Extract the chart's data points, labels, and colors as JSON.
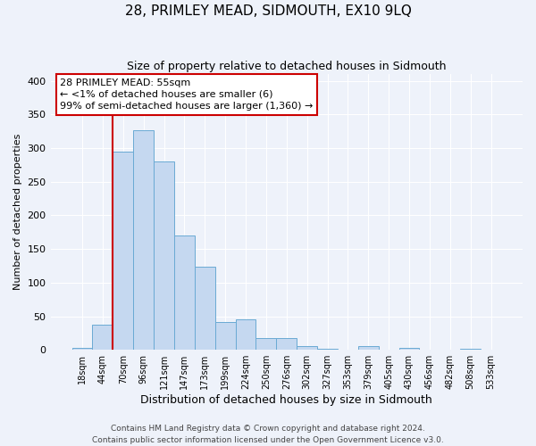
{
  "title": "28, PRIMLEY MEAD, SIDMOUTH, EX10 9LQ",
  "subtitle": "Size of property relative to detached houses in Sidmouth",
  "xlabel": "Distribution of detached houses by size in Sidmouth",
  "ylabel": "Number of detached properties",
  "bar_labels": [
    "18sqm",
    "44sqm",
    "70sqm",
    "96sqm",
    "121sqm",
    "147sqm",
    "173sqm",
    "199sqm",
    "224sqm",
    "250sqm",
    "276sqm",
    "302sqm",
    "327sqm",
    "353sqm",
    "379sqm",
    "405sqm",
    "430sqm",
    "456sqm",
    "482sqm",
    "508sqm",
    "533sqm"
  ],
  "bar_values": [
    3,
    37,
    295,
    327,
    280,
    170,
    124,
    42,
    45,
    17,
    17,
    5,
    2,
    0,
    6,
    0,
    3,
    0,
    0,
    2,
    0
  ],
  "bar_color": "#c5d8f0",
  "bar_edge_color": "#6aaad4",
  "ylim": [
    0,
    410
  ],
  "yticks": [
    0,
    50,
    100,
    150,
    200,
    250,
    300,
    350,
    400
  ],
  "vline_x_index": 1,
  "vline_color": "#cc0000",
  "annotation_text": "28 PRIMLEY MEAD: 55sqm\n← <1% of detached houses are smaller (6)\n99% of semi-detached houses are larger (1,360) →",
  "annotation_box_color": "#ffffff",
  "annotation_box_edge": "#cc0000",
  "footer_line1": "Contains HM Land Registry data © Crown copyright and database right 2024.",
  "footer_line2": "Contains public sector information licensed under the Open Government Licence v3.0.",
  "background_color": "#eef2fa",
  "plot_bg_color": "#eef2fa",
  "grid_color": "#ffffff",
  "title_fontsize": 11,
  "subtitle_fontsize": 9,
  "xlabel_fontsize": 9,
  "ylabel_fontsize": 8,
  "tick_fontsize": 7,
  "annotation_fontsize": 8,
  "footer_fontsize": 6.5
}
